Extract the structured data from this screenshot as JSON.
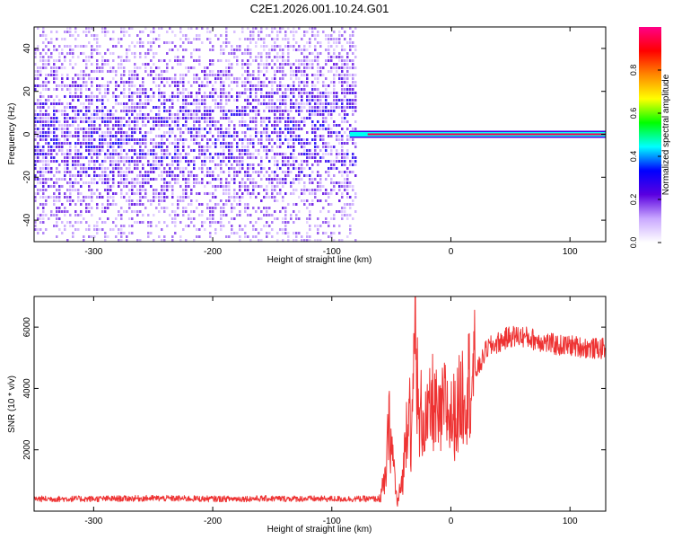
{
  "title": "C2E1.2026.001.10.24.G01",
  "chart_data": [
    {
      "type": "heatmap",
      "name": "spectrogram",
      "xlabel": "Height of straight line (km)",
      "ylabel": "Frequency (Hz)",
      "xlim": [
        -350,
        130
      ],
      "ylim": [
        -50,
        50
      ],
      "xticks": [
        -300,
        -200,
        -100,
        0,
        100
      ],
      "yticks": [
        -40,
        -20,
        0,
        20,
        40
      ],
      "grid": false,
      "colorbar": {
        "label": "Normalized spectral amplitude",
        "range": [
          0,
          1
        ],
        "ticks": [
          "0.0",
          "0.2",
          "0.4",
          "0.6",
          "0.8"
        ],
        "colors": [
          "#ffffff",
          "#c9a8ff",
          "#5a00e0",
          "#0000ff",
          "#00ffff",
          "#00ff00",
          "#ffff00",
          "#ff8800",
          "#ff0000",
          "#ff0088"
        ]
      },
      "features": {
        "scatter_region_x": [
          -350,
          -80
        ],
        "carrier_start_x": -85,
        "carrier_frequency_hz": 0,
        "carrier_peak_amplitude": 0.95
      }
    },
    {
      "type": "line",
      "name": "snr",
      "xlabel": "Height of straight line (km)",
      "ylabel": "SNR (10 * v/v)",
      "xlim": [
        -350,
        130
      ],
      "ylim": [
        0,
        7000
      ],
      "xticks": [
        -300,
        -200,
        -100,
        0,
        100
      ],
      "yticks": [
        2000,
        4000,
        6000
      ],
      "color": "#ee3333",
      "grid": false,
      "x": [
        -350,
        -300,
        -250,
        -200,
        -150,
        -100,
        -70,
        -60,
        -55,
        -52,
        -48,
        -45,
        -40,
        -38,
        -35,
        -33,
        -30,
        -27,
        -25,
        -20,
        -15,
        -10,
        -5,
        0,
        5,
        10,
        15,
        20,
        25,
        30,
        40,
        50,
        60,
        70,
        80,
        90,
        100,
        110,
        120,
        130
      ],
      "y": [
        400,
        400,
        420,
        400,
        410,
        400,
        400,
        400,
        1000,
        2800,
        1500,
        200,
        1200,
        2500,
        4000,
        1800,
        6800,
        2500,
        3200,
        2800,
        3600,
        2800,
        3500,
        3000,
        3200,
        3900,
        4200,
        4500,
        4800,
        5300,
        5500,
        5700,
        5700,
        5600,
        5500,
        5400,
        5400,
        5350,
        5300,
        5300
      ]
    }
  ]
}
